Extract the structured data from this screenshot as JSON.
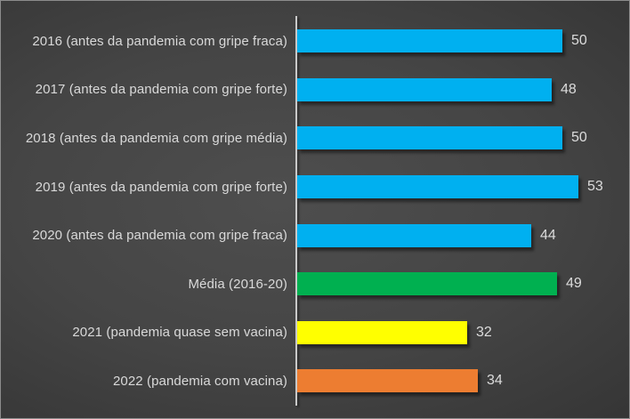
{
  "chart_data": {
    "type": "bar",
    "orientation": "horizontal",
    "title": "",
    "xlabel": "",
    "ylabel": "",
    "xlim": [
      0,
      60
    ],
    "grid": false,
    "legend": false,
    "value_labels_shown": true,
    "categories": [
      "2016 (antes da pandemia com gripe fraca)",
      "2017 (antes da pandemia com gripe forte)",
      "2018 (antes da pandemia com gripe média)",
      "2019 (antes da pandemia com gripe forte)",
      "2020 (antes da pandemia com gripe fraca)",
      "Média (2016-20)",
      "2021 (pandemia quase sem vacina)",
      "2022 (pandemia com vacina)"
    ],
    "values": [
      50,
      48,
      50,
      53,
      44,
      49,
      32,
      34
    ],
    "bar_colors": [
      "#00b0f0",
      "#00b0f0",
      "#00b0f0",
      "#00b0f0",
      "#00b0f0",
      "#00b050",
      "#ffff00",
      "#ed7d31"
    ],
    "colors": {
      "bar_blue": "#00b0f0",
      "bar_green": "#00b050",
      "bar_yellow": "#ffff00",
      "bar_orange": "#ed7d31",
      "label_text": "#d9d9d9",
      "axis_line": "#c9c9c9",
      "background_center": "#4e4e4e",
      "background_edge": "#1d1d1d"
    }
  }
}
